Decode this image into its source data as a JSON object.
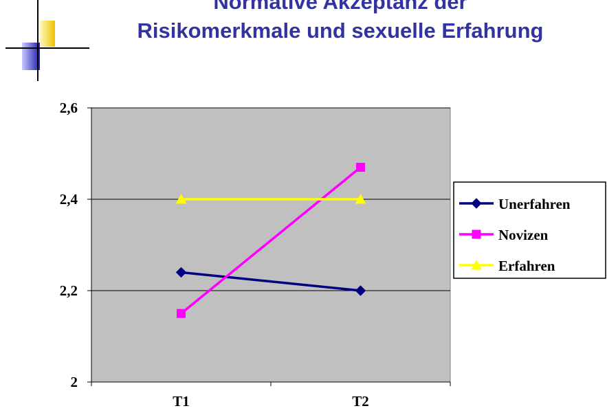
{
  "chart_data": {
    "type": "line",
    "title": [
      "Normative Akzeptanz der",
      "Risikomerkmale und sexuelle Erfahrung"
    ],
    "categories": [
      "T1",
      "T2"
    ],
    "series": [
      {
        "name": "Unerfahren",
        "color": "#000080",
        "marker": "diamond",
        "values": [
          2.24,
          2.2
        ]
      },
      {
        "name": "Novizen",
        "color": "#ff00ff",
        "marker": "square",
        "values": [
          2.15,
          2.47
        ]
      },
      {
        "name": "Erfahren",
        "color": "#ffff00",
        "marker": "triangle",
        "values": [
          2.4,
          2.4
        ]
      }
    ],
    "ylim": [
      2,
      2.6
    ],
    "yticks": [
      2,
      {
        "value": 2.2,
        "label": "2,2"
      },
      {
        "value": 2.4,
        "label": "2,4"
      },
      {
        "value": 2.6,
        "label": "2,6"
      }
    ],
    "grid": true,
    "legend": "right",
    "plot_background": "#c0c0c0"
  }
}
